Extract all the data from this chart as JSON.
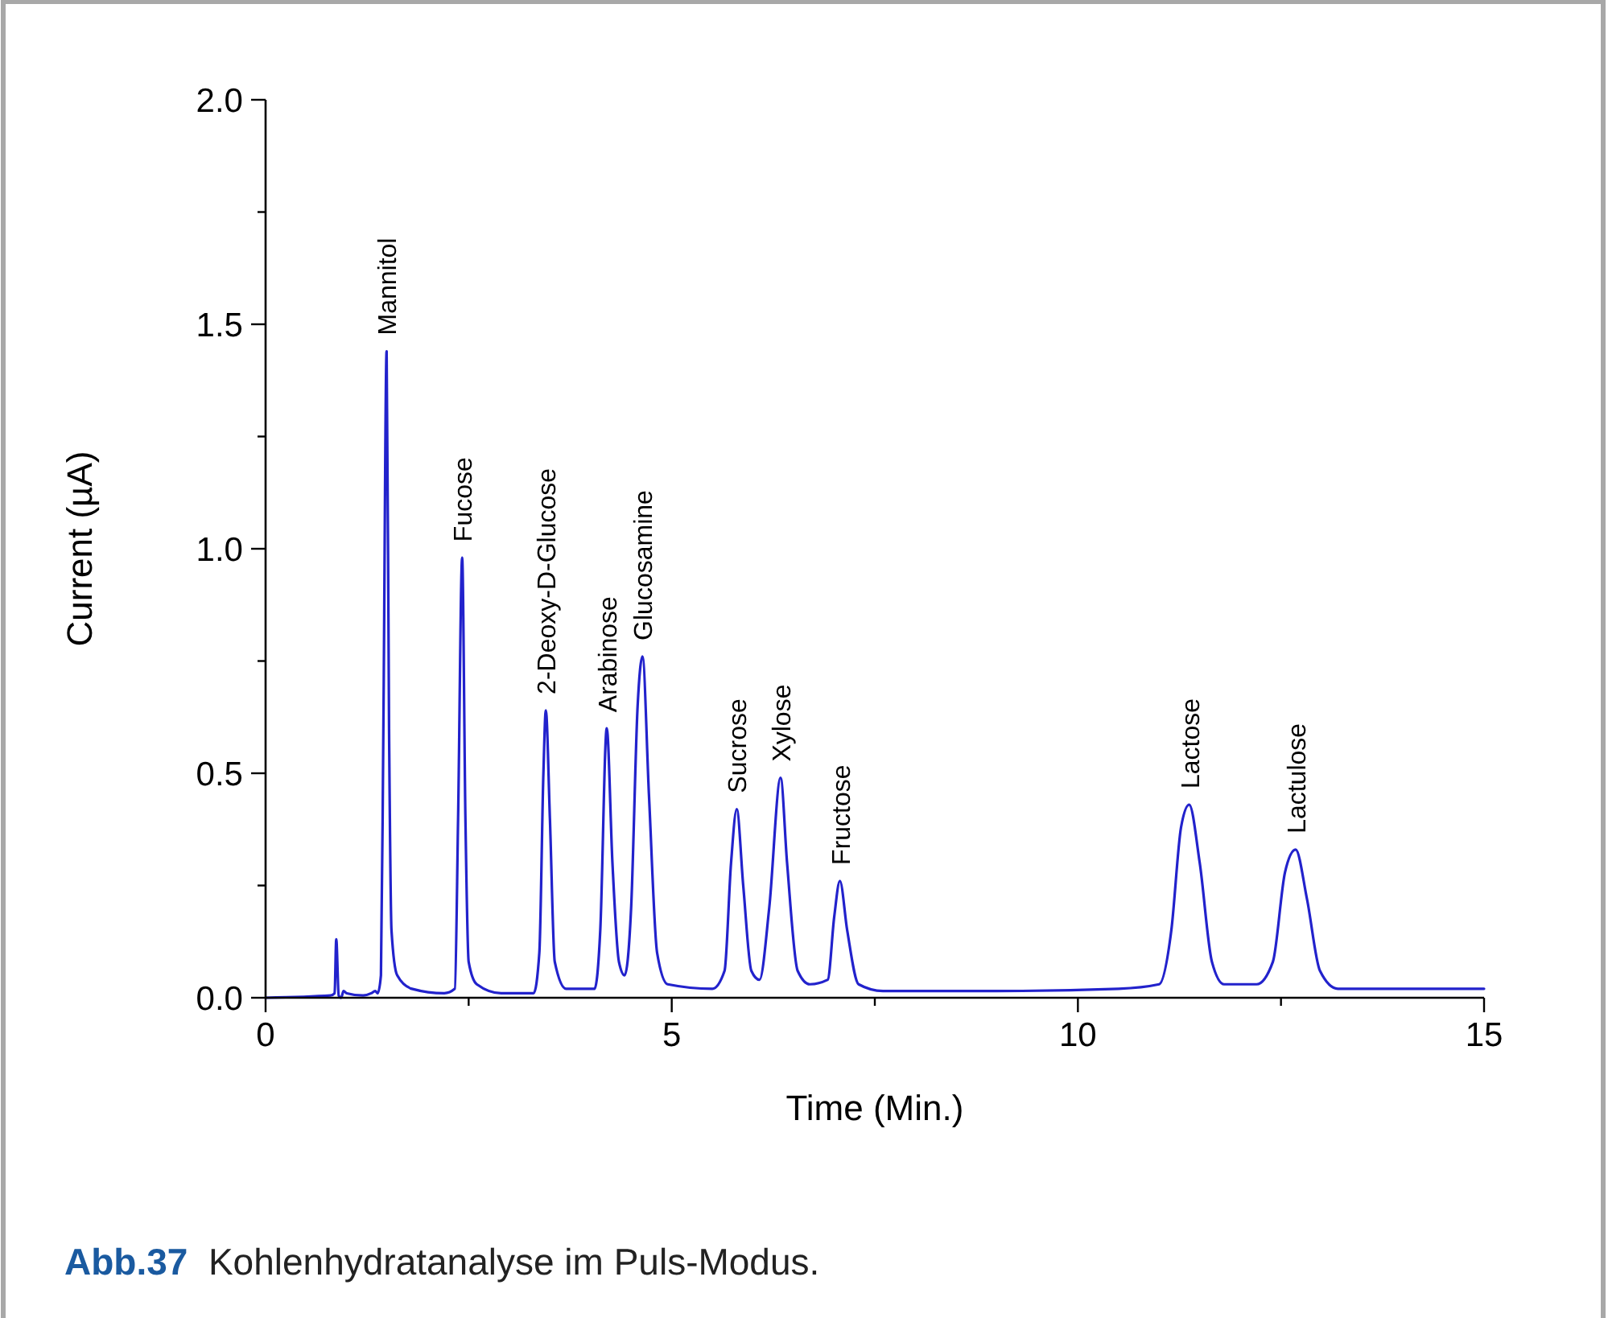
{
  "chart_data": {
    "type": "line",
    "xlabel": "Time (Min.)",
    "ylabel": "Current (µA)",
    "xlim": [
      0,
      15
    ],
    "ylim": [
      0,
      2
    ],
    "xticks": [
      0,
      {
        "value": 2.5,
        "label": null
      },
      5,
      {
        "value": 7.5,
        "label": null
      },
      10,
      {
        "value": 12.5,
        "label": null
      },
      15
    ],
    "yticks": [
      {
        "value": 0,
        "label": "0.0"
      },
      {
        "value": 0.25,
        "label": null
      },
      {
        "value": 0.5,
        "label": "0.5"
      },
      {
        "value": 0.75,
        "label": null
      },
      {
        "value": 1,
        "label": "1.0"
      },
      {
        "value": 1.25,
        "label": null
      },
      {
        "value": 1.5,
        "label": "1.5"
      },
      {
        "value": 1.75,
        "label": null
      },
      {
        "value": 2,
        "label": "2.0"
      }
    ],
    "grid": false,
    "marker": "none",
    "line_style": "solid",
    "series": [
      {
        "color": "#2222cc",
        "x": [
          0,
          0.8,
          0.85,
          0.87,
          0.9,
          0.93,
          0.96,
          1.0,
          1.2,
          1.3,
          1.35,
          1.38,
          1.42,
          1.45,
          1.49,
          1.52,
          1.55,
          1.62,
          1.8,
          2.2,
          2.33,
          2.37,
          2.42,
          2.46,
          2.5,
          2.6,
          2.9,
          3.3,
          3.37,
          3.42,
          3.45,
          3.5,
          3.56,
          3.7,
          4.05,
          4.12,
          4.2,
          4.27,
          4.35,
          4.42,
          4.5,
          4.58,
          4.64,
          4.72,
          4.82,
          4.95,
          5.5,
          5.65,
          5.73,
          5.8,
          5.88,
          5.98,
          6.08,
          6.2,
          6.34,
          6.42,
          6.55,
          6.7,
          6.92,
          7.0,
          7.07,
          7.16,
          7.3,
          7.6,
          9,
          10.5,
          11.0,
          11.15,
          11.27,
          11.37,
          11.5,
          11.65,
          11.8,
          12.2,
          12.4,
          12.55,
          12.68,
          12.82,
          12.98,
          13.2,
          14,
          15
        ],
        "values": [
          0,
          0.005,
          0.01,
          0.13,
          0.005,
          0,
          0.015,
          0.01,
          0.005,
          0.01,
          0.015,
          0.01,
          0.05,
          0.6,
          1.44,
          0.6,
          0.15,
          0.05,
          0.02,
          0.01,
          0.02,
          0.4,
          0.98,
          0.4,
          0.08,
          0.03,
          0.01,
          0.01,
          0.1,
          0.5,
          0.64,
          0.4,
          0.08,
          0.02,
          0.02,
          0.15,
          0.6,
          0.3,
          0.08,
          0.05,
          0.2,
          0.65,
          0.76,
          0.45,
          0.1,
          0.03,
          0.02,
          0.06,
          0.3,
          0.42,
          0.25,
          0.06,
          0.04,
          0.2,
          0.49,
          0.3,
          0.06,
          0.03,
          0.04,
          0.18,
          0.26,
          0.15,
          0.03,
          0.015,
          0.015,
          0.02,
          0.03,
          0.15,
          0.38,
          0.43,
          0.3,
          0.08,
          0.03,
          0.03,
          0.08,
          0.28,
          0.33,
          0.22,
          0.06,
          0.02,
          0.02,
          0.02
        ]
      }
    ],
    "annotations": [
      {
        "text": "Mannitol",
        "x": 1.49,
        "y": 1.44
      },
      {
        "text": "Fucose",
        "x": 2.42,
        "y": 0.98
      },
      {
        "text": "2-Deoxy-D-Glucose",
        "x": 3.45,
        "y": 0.64
      },
      {
        "text": "Arabinose",
        "x": 4.2,
        "y": 0.6
      },
      {
        "text": "Glucosamine",
        "x": 4.64,
        "y": 0.76
      },
      {
        "text": "Sucrose",
        "x": 5.8,
        "y": 0.42
      },
      {
        "text": "Xylose",
        "x": 6.34,
        "y": 0.49
      },
      {
        "text": "Fructose",
        "x": 7.07,
        "y": 0.26
      },
      {
        "text": "Lactose",
        "x": 11.37,
        "y": 0.43
      },
      {
        "text": "Lactulose",
        "x": 12.68,
        "y": 0.33
      },
      "Abb.37  Kohlenhydratanalyse im Puls-Modus."
    ]
  }
}
